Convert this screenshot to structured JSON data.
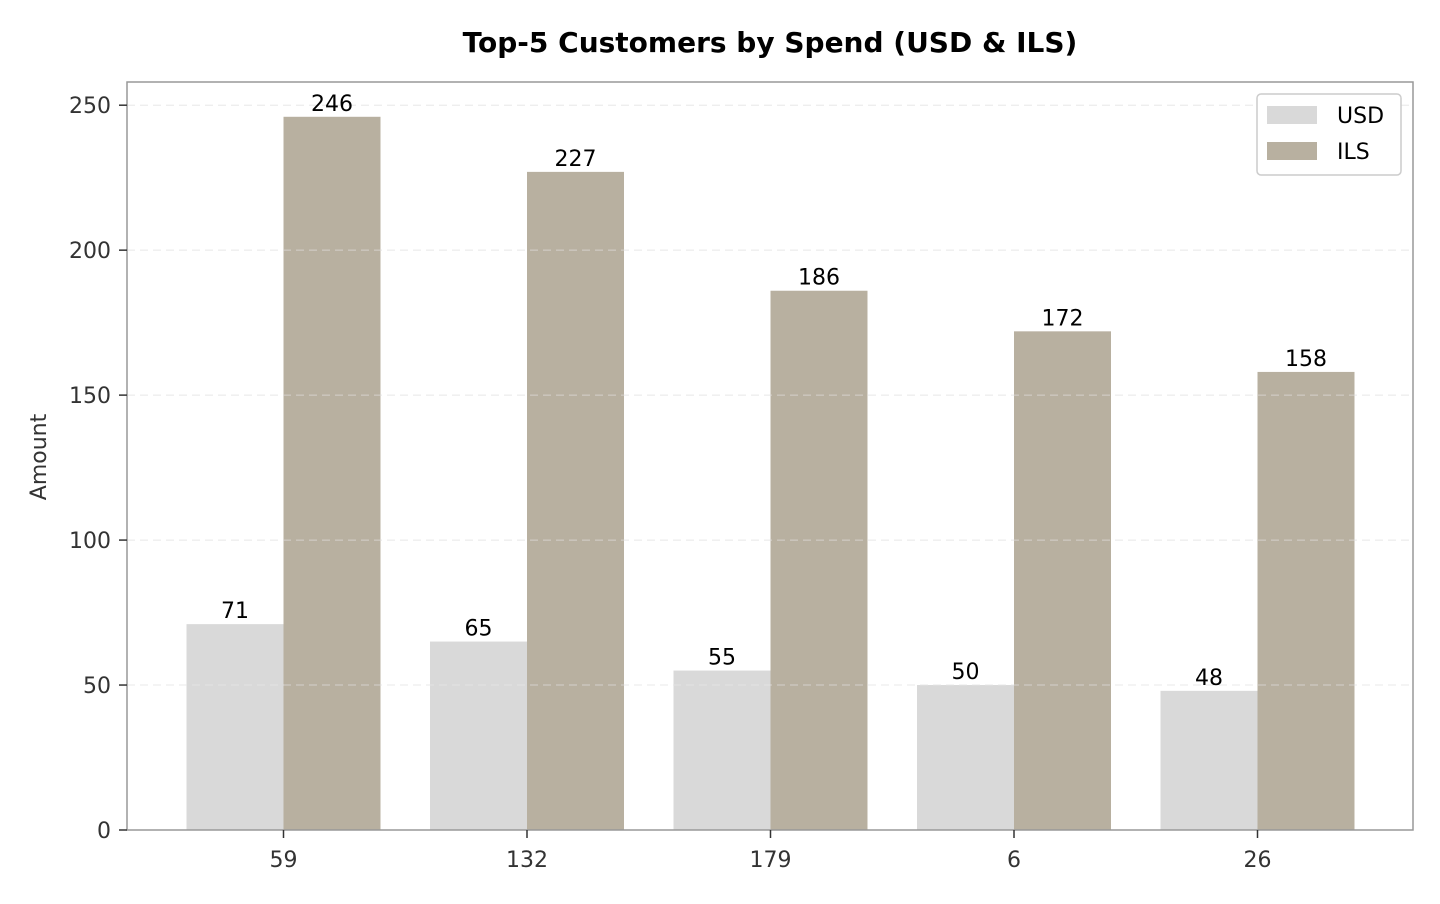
{
  "chart_data": {
    "type": "bar",
    "title": "Top-5 Customers by Spend (USD & ILS)",
    "xlabel": "",
    "ylabel": "Amount",
    "categories": [
      "59",
      "132",
      "179",
      "6",
      "26"
    ],
    "series": [
      {
        "name": "USD",
        "values": [
          71,
          65,
          55,
          50,
          48
        ],
        "color": "#d9d9d9"
      },
      {
        "name": "ILS",
        "values": [
          246,
          227,
          186,
          172,
          158
        ],
        "color": "#b8b0a0"
      }
    ],
    "ylim": [
      0,
      258
    ],
    "yticks": [
      0,
      50,
      100,
      150,
      200,
      250
    ],
    "grid": true,
    "legend": "top-right"
  }
}
